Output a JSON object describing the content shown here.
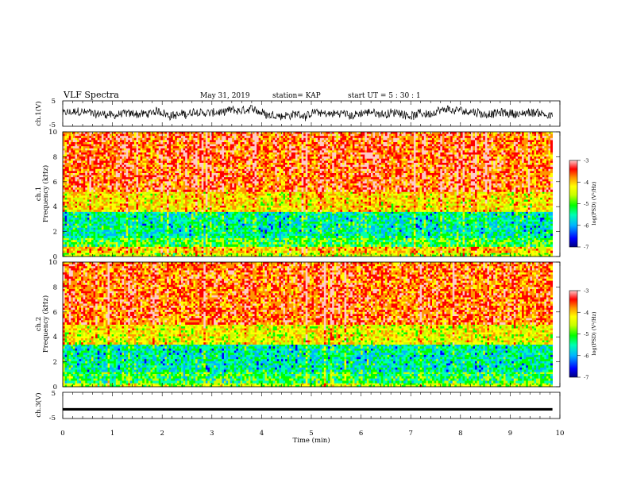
{
  "header": {
    "title": "VLF Spectra",
    "date": "May 31, 2019",
    "station": "station= KAP",
    "start_ut": "start  UT =   5 : 30 : 1"
  },
  "colors": {
    "colormap": [
      "#000080",
      "#0000ff",
      "#00b4ff",
      "#00ffb4",
      "#00ff00",
      "#c8ff00",
      "#ffff00",
      "#ff9600",
      "#ff0000",
      "#ffc8c8"
    ],
    "trace": "#000000"
  },
  "chart_data": [
    {
      "type": "line",
      "ylabel": "ch.1(V)",
      "ylim": [
        -5,
        5
      ],
      "yticks": [
        "5",
        "-5"
      ],
      "description_values": {
        "x_range_min": [
          0,
          9.85
        ],
        "amplitude_v": [
          -3.2,
          3.2
        ]
      }
    },
    {
      "type": "heatmap",
      "ylabel": "Frequency  (kHz)",
      "ylabel2": "ch.1",
      "ylim": [
        0,
        10
      ],
      "yticks": [
        "0",
        "2",
        "4",
        "6",
        "8",
        "10"
      ],
      "x_range_min": [
        0,
        9.85
      ],
      "colorbar": {
        "label": "log(PSD) (V²/Hz)",
        "range": [
          -7,
          -3
        ],
        "ticks": [
          "-3",
          "-4",
          "-5",
          "-6",
          "-7"
        ]
      },
      "bands_khz": [
        {
          "range": [
            0,
            0.3
          ],
          "level": -4.8
        },
        {
          "range": [
            0.3,
            0.8
          ],
          "level": -4.3
        },
        {
          "range": [
            0.8,
            1.5
          ],
          "level": -5.2
        },
        {
          "range": [
            1.5,
            3.6
          ],
          "level": -5.6
        },
        {
          "range": [
            3.6,
            5.2
          ],
          "level": -4.4
        },
        {
          "range": [
            5.2,
            10
          ],
          "level": -3.8
        }
      ]
    },
    {
      "type": "heatmap",
      "ylabel": "Frequency  (kHz)",
      "ylabel2": "ch.2",
      "ylim": [
        0,
        10
      ],
      "yticks": [
        "0",
        "2",
        "4",
        "6",
        "8",
        "10"
      ],
      "x_range_min": [
        0,
        9.85
      ],
      "colorbar": {
        "label": "log(PSD) (V²/Hz)",
        "range": [
          -7,
          -3
        ],
        "ticks": [
          "-3",
          "-4",
          "-5",
          "-6",
          "-7"
        ]
      },
      "bands_khz": [
        {
          "range": [
            0,
            0.3
          ],
          "level": -4.8
        },
        {
          "range": [
            0.3,
            1.2
          ],
          "level": -5.3
        },
        {
          "range": [
            1.2,
            3.4
          ],
          "level": -5.6
        },
        {
          "range": [
            3.4,
            5.0
          ],
          "level": -4.5
        },
        {
          "range": [
            5.0,
            10
          ],
          "level": -3.8
        }
      ]
    },
    {
      "type": "line",
      "ylabel": "ch.3(V)",
      "ylim": [
        -5,
        5
      ],
      "yticks": [
        "5",
        "-5"
      ],
      "constant_value_v": -1.5,
      "xlabel": "Time  (min)",
      "xlim": [
        0,
        10
      ],
      "xticks": [
        "0",
        "1",
        "2",
        "3",
        "4",
        "5",
        "6",
        "7",
        "8",
        "9",
        "10"
      ]
    }
  ]
}
